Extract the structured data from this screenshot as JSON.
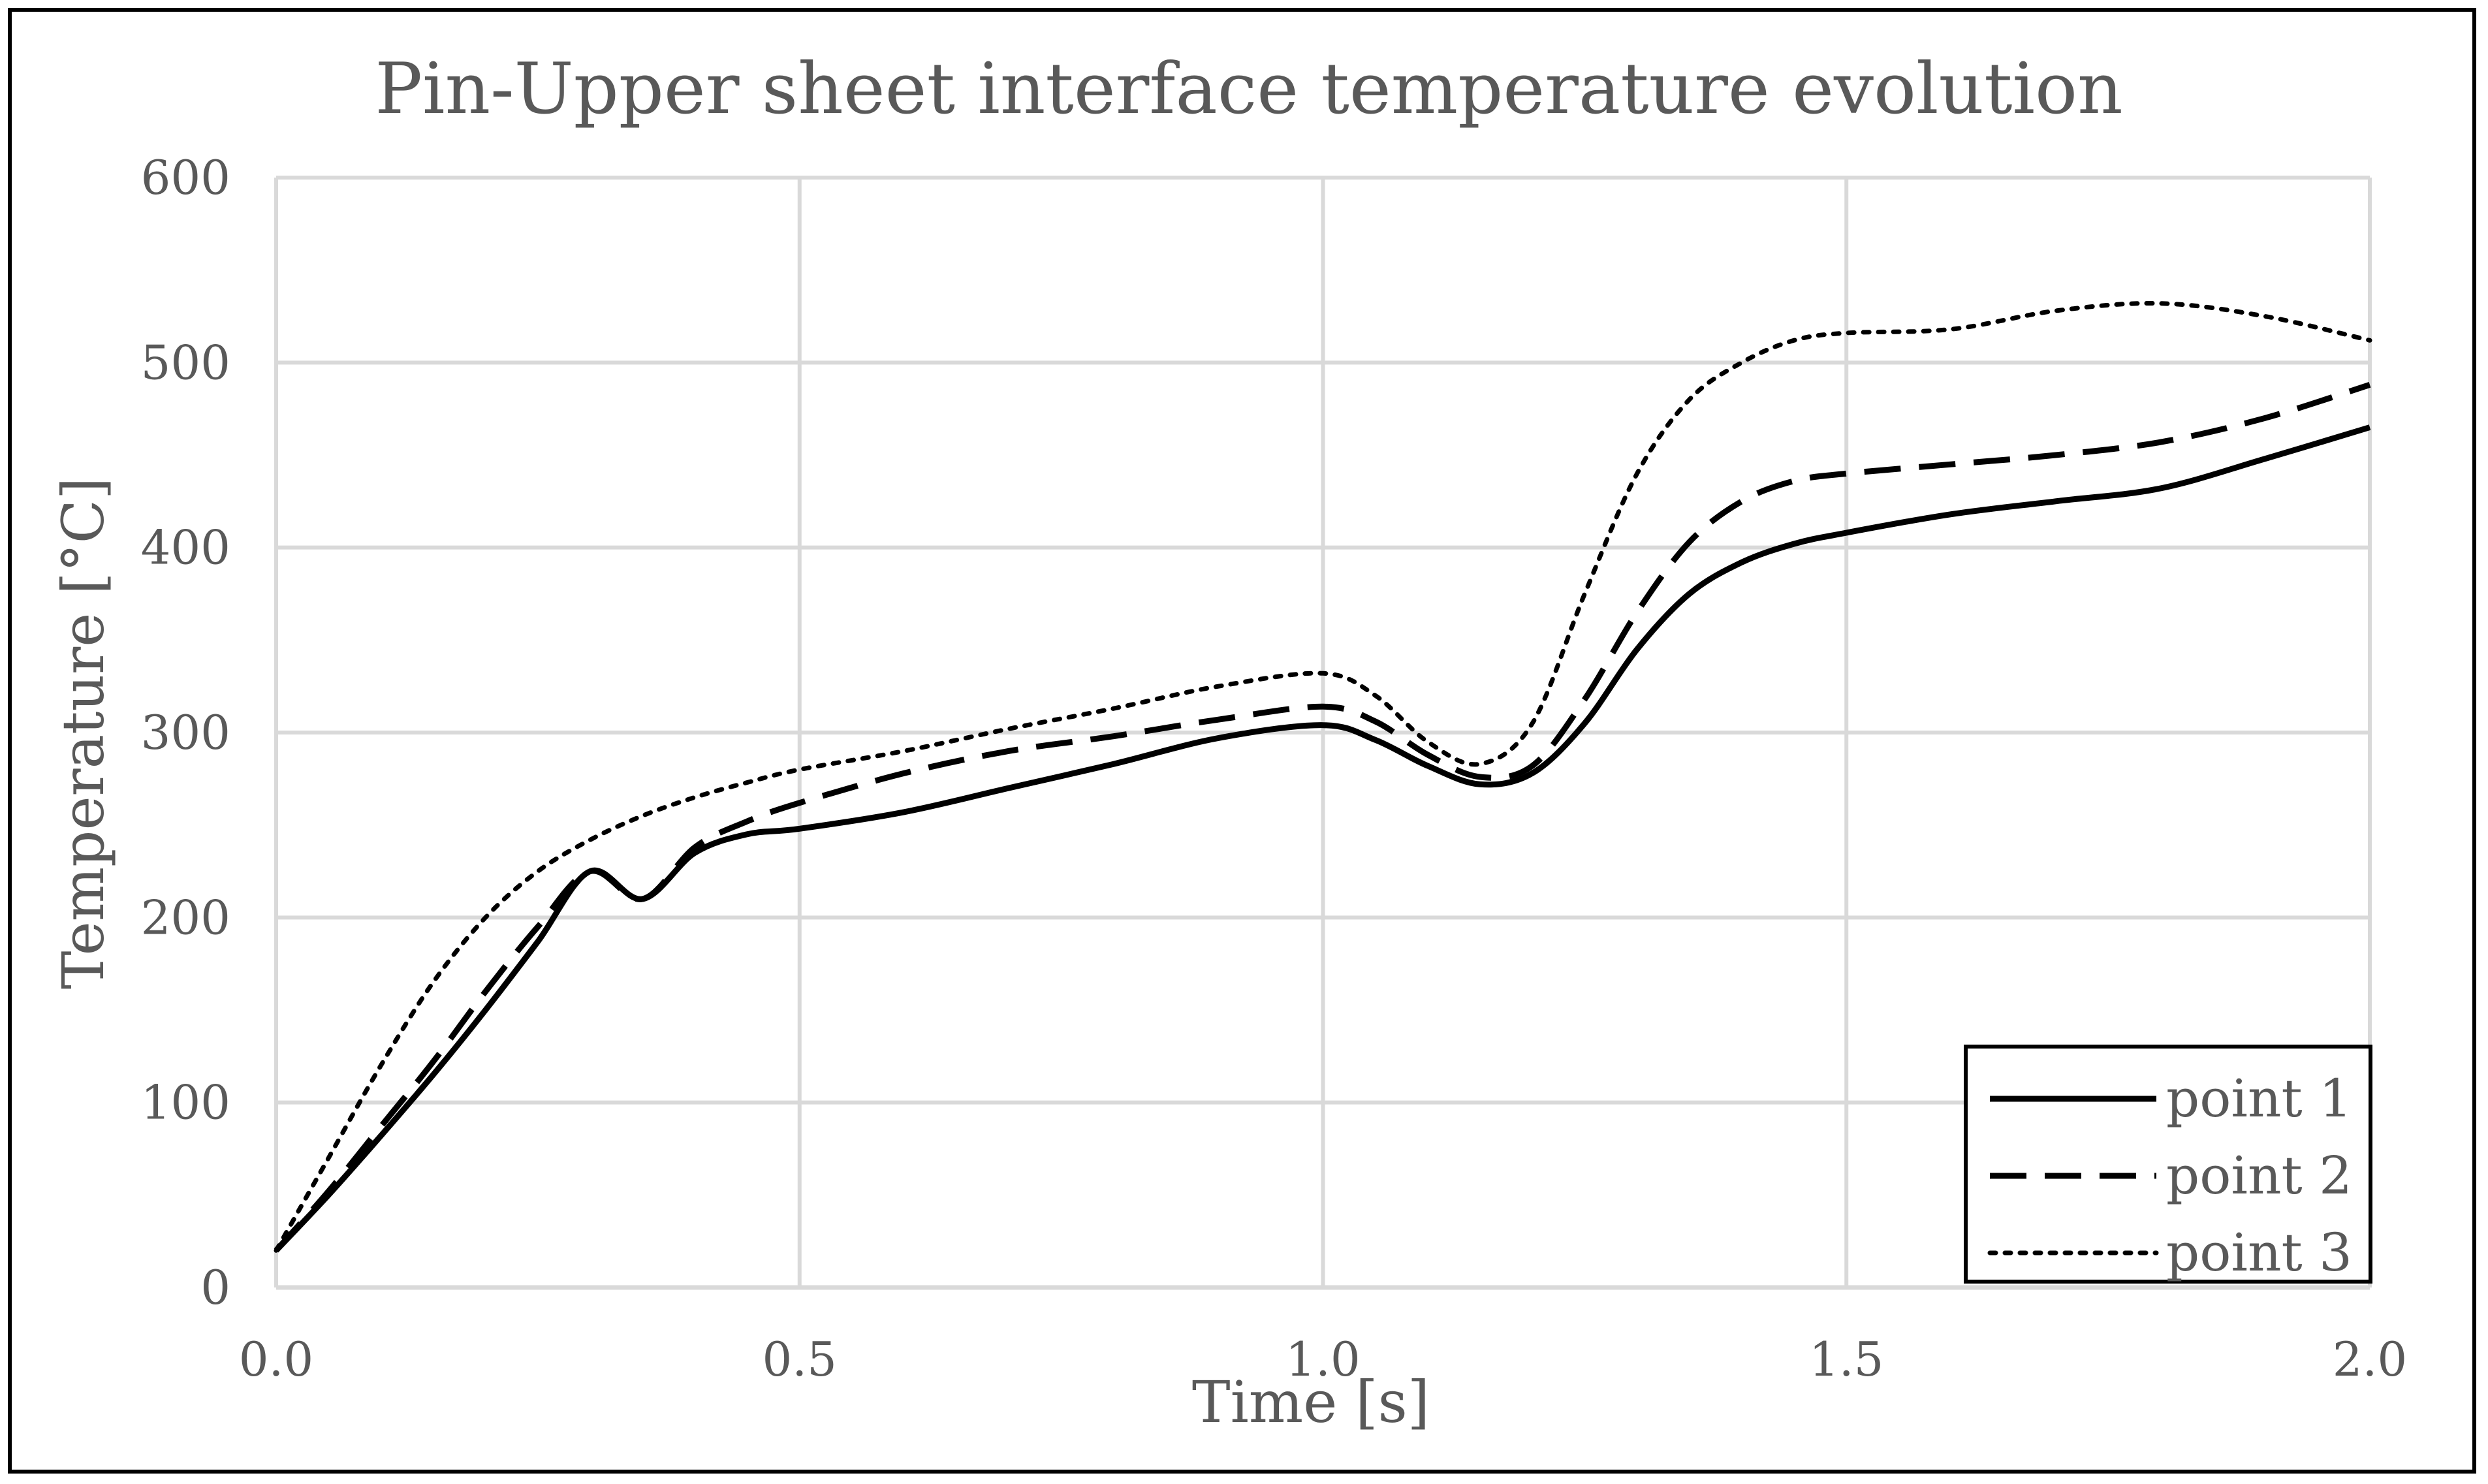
{
  "chart_data": {
    "type": "line",
    "title": "Pin-Upper sheet interface temperature evolution",
    "xlabel": "Time [s]",
    "ylabel": "Temperature [°C]",
    "xlim": [
      0,
      2.0
    ],
    "ylim": [
      0,
      600
    ],
    "x_ticks": [
      "0.0",
      "0.5",
      "1.0",
      "1.5",
      "2.0"
    ],
    "y_ticks": [
      "0",
      "100",
      "200",
      "300",
      "400",
      "500",
      "600"
    ],
    "grid": true,
    "legend_position": "bottom-right",
    "series": [
      {
        "name": "point 1",
        "style": "solid",
        "color": "#000000",
        "x": [
          0.0,
          0.05,
          0.1,
          0.15,
          0.2,
          0.25,
          0.3,
          0.35,
          0.4,
          0.45,
          0.5,
          0.6,
          0.7,
          0.8,
          0.9,
          1.0,
          1.05,
          1.1,
          1.15,
          1.2,
          1.25,
          1.3,
          1.35,
          1.4,
          1.45,
          1.5,
          1.6,
          1.7,
          1.8,
          1.9,
          2.0
        ],
        "y": [
          20,
          50,
          82,
          115,
          150,
          187,
          225,
          210,
          235,
          245,
          248,
          257,
          270,
          283,
          297,
          304,
          296,
          282,
          272,
          278,
          305,
          345,
          375,
          392,
          402,
          408,
          418,
          425,
          432,
          448,
          465
        ]
      },
      {
        "name": "point 2",
        "style": "dashed",
        "color": "#000000",
        "x": [
          0.0,
          0.05,
          0.1,
          0.15,
          0.2,
          0.25,
          0.3,
          0.35,
          0.4,
          0.45,
          0.5,
          0.6,
          0.7,
          0.8,
          0.9,
          1.0,
          1.05,
          1.1,
          1.15,
          1.2,
          1.25,
          1.3,
          1.35,
          1.4,
          1.45,
          1.5,
          1.6,
          1.7,
          1.8,
          1.9,
          2.0
        ],
        "y": [
          20,
          52,
          87,
          122,
          160,
          195,
          225,
          210,
          238,
          252,
          262,
          278,
          290,
          298,
          307,
          314,
          306,
          288,
          276,
          282,
          318,
          365,
          403,
          425,
          436,
          440,
          445,
          450,
          457,
          470,
          488
        ]
      },
      {
        "name": "point 3",
        "style": "dotted",
        "color": "#000000",
        "x": [
          0.0,
          0.05,
          0.1,
          0.15,
          0.2,
          0.25,
          0.3,
          0.35,
          0.4,
          0.45,
          0.5,
          0.6,
          0.7,
          0.8,
          0.9,
          1.0,
          1.05,
          1.1,
          1.15,
          1.2,
          1.25,
          1.3,
          1.35,
          1.4,
          1.45,
          1.5,
          1.6,
          1.7,
          1.8,
          1.9,
          2.0
        ],
        "y": [
          20,
          70,
          120,
          165,
          200,
          225,
          242,
          255,
          265,
          273,
          280,
          290,
          302,
          313,
          325,
          332,
          320,
          295,
          283,
          305,
          375,
          440,
          480,
          500,
          512,
          516,
          518,
          528,
          532,
          525,
          512
        ]
      }
    ]
  }
}
